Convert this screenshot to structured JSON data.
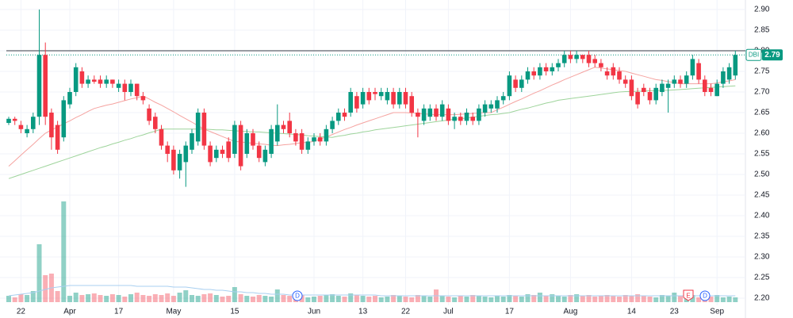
{
  "chart_data": {
    "type": "candlestick",
    "symbol": "DBI",
    "last_price": 2.79,
    "reference_line": 2.8,
    "up_color": "#089981",
    "down_color": "#f23645",
    "fast_ma_color": "#f5a3a0",
    "slow_ma_color": "#9ed49b",
    "volume_ma_color": "#a8cff0",
    "events": [
      "D",
      "E",
      "D"
    ],
    "ylim": [
      2.2,
      2.9
    ],
    "yticks": [
      {
        "value": 2.2,
        "label": "2.20"
      },
      2.25,
      {
        "value": 2.3,
        "label": "2.30"
      },
      2.35,
      {
        "value": 2.4,
        "label": "2.40"
      },
      2.45,
      {
        "value": 2.5,
        "label": "2.50"
      },
      2.55,
      {
        "value": 2.6,
        "label": "2.60"
      },
      2.65,
      {
        "value": 2.7,
        "label": "2.70"
      },
      2.75,
      {
        "value": 2.8,
        "label": "2.80"
      },
      2.85,
      {
        "value": 2.9,
        "label": "2.90"
      }
    ],
    "grid": true,
    "categories": [
      null,
      null,
      "22",
      null,
      null,
      null,
      null,
      null,
      null,
      null,
      "Apr",
      null,
      null,
      null,
      null,
      null,
      null,
      null,
      "17",
      null,
      null,
      null,
      null,
      null,
      null,
      null,
      null,
      "May",
      null,
      null,
      null,
      null,
      null,
      null,
      null,
      null,
      null,
      "15",
      null,
      null,
      null,
      null,
      null,
      null,
      null,
      null,
      null,
      null,
      null,
      null,
      "Jun",
      null,
      null,
      null,
      null,
      null,
      null,
      null,
      "13",
      null,
      null,
      null,
      null,
      null,
      null,
      "22",
      null,
      null,
      null,
      null,
      null,
      null,
      "Jul",
      null,
      null,
      null,
      null,
      null,
      null,
      null,
      null,
      null,
      "17",
      null,
      null,
      null,
      null,
      null,
      null,
      null,
      null,
      null,
      "Aug",
      null,
      null,
      null,
      null,
      null,
      null,
      null,
      null,
      null,
      "14",
      null,
      null,
      null,
      null,
      null,
      null,
      "23",
      null,
      null,
      null,
      null,
      null,
      null,
      "Sep",
      null,
      null,
      null
    ],
    "open": [
      2.625,
      2.635,
      2.62,
      2.6,
      2.61,
      2.64,
      2.79,
      2.65,
      2.62,
      2.59,
      2.67,
      2.7,
      2.75,
      2.72,
      2.73,
      2.73,
      2.72,
      2.73,
      2.71,
      2.72,
      2.7,
      2.72,
      2.69,
      2.66,
      2.64,
      2.61,
      2.57,
      2.56,
      2.51,
      2.53,
      2.56,
      2.58,
      2.65,
      2.57,
      2.54,
      2.56,
      2.58,
      2.55,
      2.62,
      2.55,
      2.6,
      2.57,
      2.53,
      2.55,
      2.58,
      2.62,
      2.63,
      2.6,
      2.6,
      2.56,
      2.58,
      2.59,
      2.58,
      2.61,
      2.63,
      2.65,
      2.65,
      2.69,
      2.67,
      2.7,
      2.7,
      2.69,
      2.68,
      2.7,
      2.67,
      2.7,
      2.69,
      2.65,
      2.63,
      2.64,
      2.66,
      2.64,
      2.66,
      2.63,
      2.64,
      2.63,
      2.64,
      2.63,
      2.65,
      2.66,
      2.66,
      2.68,
      2.69,
      2.73,
      2.71,
      2.73,
      2.75,
      2.74,
      2.76,
      2.75,
      2.76,
      2.77,
      2.79,
      2.78,
      2.79,
      2.79,
      2.78,
      2.77,
      2.75,
      2.76,
      2.75,
      2.73,
      2.73,
      2.7,
      2.71,
      2.7,
      2.68,
      2.7,
      2.71,
      2.72,
      2.73,
      2.72,
      2.74,
      2.77,
      2.73,
      2.71,
      2.69,
      2.72,
      2.73,
      2.74
    ],
    "high": [
      2.64,
      2.64,
      2.63,
      2.62,
      2.65,
      2.9,
      2.82,
      2.66,
      2.63,
      2.69,
      2.71,
      2.77,
      2.76,
      2.74,
      2.74,
      2.74,
      2.74,
      2.73,
      2.73,
      2.73,
      2.73,
      2.72,
      2.7,
      2.67,
      2.65,
      2.62,
      2.58,
      2.57,
      2.56,
      2.58,
      2.61,
      2.66,
      2.66,
      2.58,
      2.57,
      2.57,
      2.59,
      2.63,
      2.63,
      2.61,
      2.61,
      2.58,
      2.57,
      2.62,
      2.67,
      2.63,
      2.65,
      2.61,
      2.61,
      2.59,
      2.6,
      2.6,
      2.62,
      2.64,
      2.66,
      2.66,
      2.71,
      2.7,
      2.71,
      2.71,
      2.71,
      2.71,
      2.71,
      2.71,
      2.71,
      2.71,
      2.7,
      2.66,
      2.67,
      2.67,
      2.67,
      2.68,
      2.67,
      2.65,
      2.65,
      2.66,
      2.65,
      2.67,
      2.68,
      2.68,
      2.69,
      2.7,
      2.75,
      2.74,
      2.74,
      2.76,
      2.76,
      2.77,
      2.77,
      2.77,
      2.78,
      2.8,
      2.8,
      2.8,
      2.79,
      2.8,
      2.79,
      2.78,
      2.76,
      2.77,
      2.76,
      2.74,
      2.74,
      2.71,
      2.72,
      2.71,
      2.72,
      2.73,
      2.73,
      2.74,
      2.74,
      2.75,
      2.79,
      2.78,
      2.74,
      2.72,
      2.73,
      2.76,
      2.77,
      2.8
    ],
    "low": [
      2.62,
      2.62,
      2.6,
      2.59,
      2.6,
      2.62,
      2.62,
      2.56,
      2.55,
      2.58,
      2.66,
      2.69,
      2.71,
      2.71,
      2.72,
      2.71,
      2.71,
      2.71,
      2.7,
      2.68,
      2.69,
      2.68,
      2.67,
      2.62,
      2.6,
      2.56,
      2.53,
      2.5,
      2.49,
      2.47,
      2.55,
      2.57,
      2.56,
      2.52,
      2.53,
      2.54,
      2.53,
      2.54,
      2.51,
      2.54,
      2.56,
      2.53,
      2.52,
      2.54,
      2.57,
      2.6,
      2.59,
      2.57,
      2.55,
      2.55,
      2.57,
      2.57,
      2.57,
      2.6,
      2.62,
      2.63,
      2.64,
      2.65,
      2.66,
      2.67,
      2.68,
      2.68,
      2.67,
      2.66,
      2.66,
      2.66,
      2.64,
      2.59,
      2.62,
      2.63,
      2.63,
      2.63,
      2.62,
      2.61,
      2.62,
      2.62,
      2.62,
      2.62,
      2.64,
      2.65,
      2.65,
      2.67,
      2.68,
      2.7,
      2.7,
      2.72,
      2.73,
      2.73,
      2.74,
      2.74,
      2.75,
      2.76,
      2.77,
      2.77,
      2.77,
      2.76,
      2.76,
      2.75,
      2.73,
      2.73,
      2.72,
      2.71,
      2.68,
      2.66,
      2.69,
      2.67,
      2.67,
      2.69,
      2.65,
      2.71,
      2.71,
      2.71,
      2.73,
      2.72,
      2.69,
      2.69,
      2.69,
      2.71,
      2.72,
      2.73
    ],
    "close": [
      2.635,
      2.63,
      2.61,
      2.61,
      2.64,
      2.79,
      2.64,
      2.59,
      2.56,
      2.68,
      2.7,
      2.76,
      2.72,
      2.73,
      2.725,
      2.72,
      2.73,
      2.72,
      2.72,
      2.7,
      2.72,
      2.69,
      2.68,
      2.63,
      2.61,
      2.57,
      2.55,
      2.51,
      2.55,
      2.57,
      2.6,
      2.65,
      2.57,
      2.53,
      2.56,
      2.55,
      2.54,
      2.62,
      2.52,
      2.6,
      2.57,
      2.54,
      2.56,
      2.61,
      2.62,
      2.61,
      2.6,
      2.58,
      2.56,
      2.58,
      2.59,
      2.58,
      2.61,
      2.63,
      2.65,
      2.64,
      2.7,
      2.66,
      2.7,
      2.68,
      2.695,
      2.7,
      2.7,
      2.67,
      2.7,
      2.67,
      2.65,
      2.64,
      2.66,
      2.66,
      2.64,
      2.67,
      2.63,
      2.64,
      2.63,
      2.65,
      2.63,
      2.66,
      2.67,
      2.67,
      2.68,
      2.69,
      2.74,
      2.71,
      2.73,
      2.75,
      2.74,
      2.76,
      2.75,
      2.76,
      2.77,
      2.79,
      2.78,
      2.79,
      2.78,
      2.77,
      2.77,
      2.76,
      2.74,
      2.74,
      2.73,
      2.72,
      2.69,
      2.67,
      2.7,
      2.68,
      2.71,
      2.72,
      2.72,
      2.73,
      2.72,
      2.74,
      2.78,
      2.73,
      2.7,
      2.7,
      2.72,
      2.75,
      2.76,
      2.79
    ],
    "fast_ma": [
      2.52,
      2.533,
      2.547,
      2.56,
      2.573,
      2.587,
      2.6,
      2.608,
      2.615,
      2.623,
      2.63,
      2.638,
      2.645,
      2.653,
      2.66,
      2.664,
      2.668,
      2.671,
      2.675,
      2.679,
      2.683,
      2.686,
      2.69,
      2.683,
      2.675,
      2.668,
      2.66,
      2.652,
      2.643,
      2.635,
      2.627,
      2.618,
      2.61,
      2.604,
      2.598,
      2.592,
      2.586,
      2.58,
      2.579,
      2.577,
      2.576,
      2.574,
      2.573,
      2.571,
      2.57,
      2.572,
      2.573,
      2.575,
      2.577,
      2.578,
      2.58,
      2.586,
      2.591,
      2.597,
      2.603,
      2.609,
      2.614,
      2.62,
      2.625,
      2.63,
      2.635,
      2.64,
      2.645,
      2.65,
      2.65,
      2.65,
      2.649,
      2.648,
      2.647,
      2.646,
      2.645,
      2.645,
      2.645,
      2.645,
      2.646,
      2.647,
      2.648,
      2.649,
      2.65,
      2.65,
      2.657,
      2.663,
      2.67,
      2.677,
      2.683,
      2.69,
      2.697,
      2.703,
      2.71,
      2.717,
      2.723,
      2.73,
      2.736,
      2.742,
      2.748,
      2.754,
      2.76,
      2.758,
      2.756,
      2.754,
      2.752,
      2.75,
      2.746,
      2.742,
      2.738,
      2.734,
      2.73,
      2.728,
      2.725,
      2.723,
      2.72,
      2.72,
      2.72,
      2.72,
      2.72,
      2.72,
      2.722,
      2.725,
      2.727,
      2.73
    ],
    "slow_ma": [
      2.49,
      2.495,
      2.5,
      2.505,
      2.51,
      2.515,
      2.52,
      2.525,
      2.53,
      2.535,
      2.54,
      2.545,
      2.55,
      2.555,
      2.56,
      2.565,
      2.569,
      2.574,
      2.578,
      2.583,
      2.587,
      2.592,
      2.596,
      2.601,
      2.605,
      2.61,
      2.61,
      2.61,
      2.61,
      2.61,
      2.61,
      2.61,
      2.61,
      2.609,
      2.608,
      2.608,
      2.607,
      2.606,
      2.605,
      2.604,
      2.603,
      2.603,
      2.602,
      2.601,
      2.6,
      2.599,
      2.598,
      2.597,
      2.596,
      2.594,
      2.593,
      2.592,
      2.591,
      2.59,
      2.593,
      2.595,
      2.598,
      2.6,
      2.603,
      2.605,
      2.608,
      2.61,
      2.612,
      2.614,
      2.616,
      2.618,
      2.62,
      2.622,
      2.624,
      2.626,
      2.628,
      2.63,
      2.632,
      2.634,
      2.635,
      2.637,
      2.639,
      2.641,
      2.643,
      2.645,
      2.646,
      2.648,
      2.65,
      2.654,
      2.658,
      2.661,
      2.665,
      2.669,
      2.673,
      2.676,
      2.68,
      2.682,
      2.684,
      2.686,
      2.688,
      2.69,
      2.692,
      2.694,
      2.696,
      2.698,
      2.7,
      2.701,
      2.701,
      2.702,
      2.702,
      2.703,
      2.703,
      2.704,
      2.704,
      2.705,
      2.706,
      2.707,
      2.708,
      2.709,
      2.71,
      2.711,
      2.712,
      2.713,
      2.714,
      2.715
    ],
    "volume": [
      8,
      6,
      10,
      9,
      14,
      73,
      34,
      36,
      14,
      127,
      8,
      12,
      9,
      10,
      11,
      9,
      8,
      10,
      9,
      7,
      10,
      12,
      9,
      8,
      10,
      9,
      11,
      8,
      12,
      15,
      9,
      8,
      10,
      11,
      9,
      7,
      8,
      19,
      10,
      8,
      7,
      9,
      8,
      7,
      16,
      9,
      8,
      7,
      9,
      6,
      7,
      8,
      9,
      10,
      8,
      7,
      11,
      9,
      8,
      7,
      8,
      6,
      7,
      9,
      8,
      7,
      6,
      9,
      8,
      7,
      16,
      8,
      7,
      6,
      8,
      7,
      9,
      8,
      7,
      6,
      8,
      7,
      9,
      8,
      7,
      10,
      9,
      12,
      8,
      10,
      8,
      7,
      9,
      10,
      8,
      9,
      7,
      8,
      9,
      8,
      7,
      9,
      8,
      10,
      8,
      7,
      6,
      9,
      8,
      12,
      8,
      7,
      9,
      6,
      8,
      7,
      9,
      6,
      7,
      6
    ],
    "volume_ma": [
      8,
      9,
      10,
      11,
      12,
      14,
      16,
      18,
      19,
      20,
      21,
      21,
      21,
      21,
      21,
      21,
      21,
      21,
      21,
      21,
      21,
      20,
      20,
      20,
      20,
      20,
      20,
      19,
      19,
      19,
      18,
      17,
      16,
      16,
      15,
      15,
      14,
      13,
      13,
      12,
      12,
      11,
      11,
      10,
      10,
      10,
      9,
      9,
      9,
      9,
      9,
      9,
      9,
      9,
      9,
      9,
      9,
      9,
      9,
      9,
      9,
      8,
      8,
      8,
      8,
      8,
      8,
      8,
      8,
      8,
      8,
      8,
      8,
      8,
      8,
      8,
      8,
      8,
      8,
      8,
      8,
      8,
      8,
      8,
      8,
      8,
      8,
      8,
      8,
      8,
      8,
      8,
      8,
      8,
      8,
      8,
      8,
      8,
      8,
      8,
      8,
      8,
      8,
      8,
      8,
      8,
      8,
      8,
      8,
      8,
      8,
      8,
      8,
      8,
      8,
      8,
      8,
      8,
      8,
      8
    ]
  }
}
